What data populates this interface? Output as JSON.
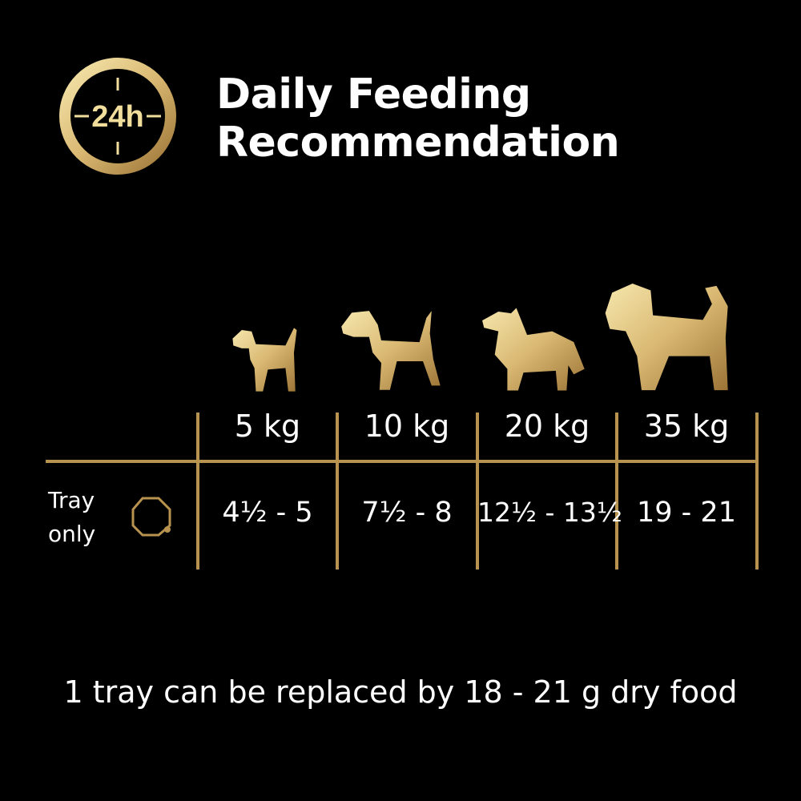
{
  "header": {
    "icon_label": "24h",
    "title_line1": "Daily Feeding",
    "title_line2": "Recommendation"
  },
  "table": {
    "columns": [
      {
        "weight": "5 kg",
        "dog_icon": "small-terrier-icon"
      },
      {
        "weight": "10 kg",
        "dog_icon": "medium-terrier-icon"
      },
      {
        "weight": "20 kg",
        "dog_icon": "collie-icon"
      },
      {
        "weight": "35 kg",
        "dog_icon": "large-shaggy-dog-icon"
      }
    ],
    "rows": [
      {
        "label_line1": "Tray",
        "label_line2": "only",
        "icon": "tray-icon",
        "values": [
          "4½ - 5",
          "7½ - 8",
          "12½ - 13½",
          "19 - 21"
        ]
      }
    ]
  },
  "footer": {
    "note": "1 tray can be replaced by 18 - 21 g dry food"
  },
  "colors": {
    "background": "#000000",
    "gold": "#b8924f",
    "gold_light": "#f3e3a6",
    "text": "#ffffff"
  }
}
